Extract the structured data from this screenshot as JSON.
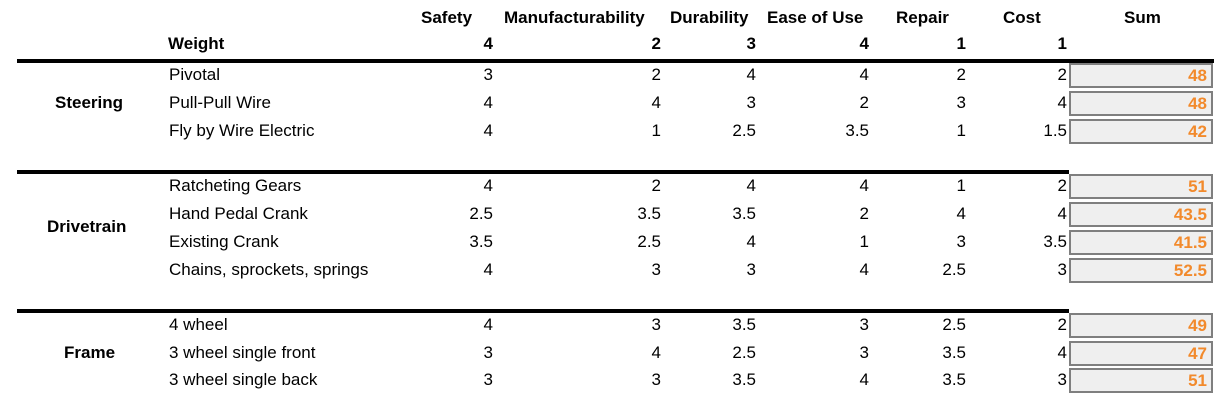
{
  "header": {
    "columns": [
      "Safety",
      "Manufacturability",
      "Durability",
      "Ease of Use",
      "Repair",
      "Cost"
    ],
    "sum_label": "Sum",
    "weight_label": "Weight",
    "weights": [
      "4",
      "2",
      "3",
      "4",
      "1",
      "1"
    ]
  },
  "groups": [
    {
      "name": "Steering",
      "rows": [
        {
          "label": "Pivotal",
          "scores": [
            "3",
            "2",
            "4",
            "4",
            "2",
            "2"
          ],
          "sum": "48"
        },
        {
          "label": "Pull-Pull Wire",
          "scores": [
            "4",
            "4",
            "3",
            "2",
            "3",
            "4"
          ],
          "sum": "48"
        },
        {
          "label": "Fly by Wire Electric",
          "scores": [
            "4",
            "1",
            "2.5",
            "3.5",
            "1",
            "1.5"
          ],
          "sum": "42"
        }
      ]
    },
    {
      "name": "Drivetrain",
      "rows": [
        {
          "label": "Ratcheting Gears",
          "scores": [
            "4",
            "2",
            "4",
            "4",
            "1",
            "2"
          ],
          "sum": "51"
        },
        {
          "label": "Hand Pedal Crank",
          "scores": [
            "2.5",
            "3.5",
            "3.5",
            "2",
            "4",
            "4"
          ],
          "sum": "43.5"
        },
        {
          "label": "Existing Crank",
          "scores": [
            "3.5",
            "2.5",
            "4",
            "1",
            "3",
            "3.5"
          ],
          "sum": "41.5"
        },
        {
          "label": "Chains, sprockets, springs",
          "scores": [
            "4",
            "3",
            "3",
            "4",
            "2.5",
            "3"
          ],
          "sum": "52.5"
        }
      ]
    },
    {
      "name": "Frame",
      "rows": [
        {
          "label": "4 wheel",
          "scores": [
            "4",
            "3",
            "3.5",
            "3",
            "2.5",
            "2"
          ],
          "sum": "49"
        },
        {
          "label": "3 wheel single front",
          "scores": [
            "3",
            "4",
            "2.5",
            "3",
            "3.5",
            "4"
          ],
          "sum": "47"
        },
        {
          "label": "3 wheel single back",
          "scores": [
            "3",
            "3",
            "3.5",
            "4",
            "3.5",
            "3"
          ],
          "sum": "51"
        }
      ]
    }
  ],
  "colors": {
    "sum_text": "#f28a2c",
    "sum_fill": "#efefef",
    "sum_border": "#7f7f7f"
  }
}
